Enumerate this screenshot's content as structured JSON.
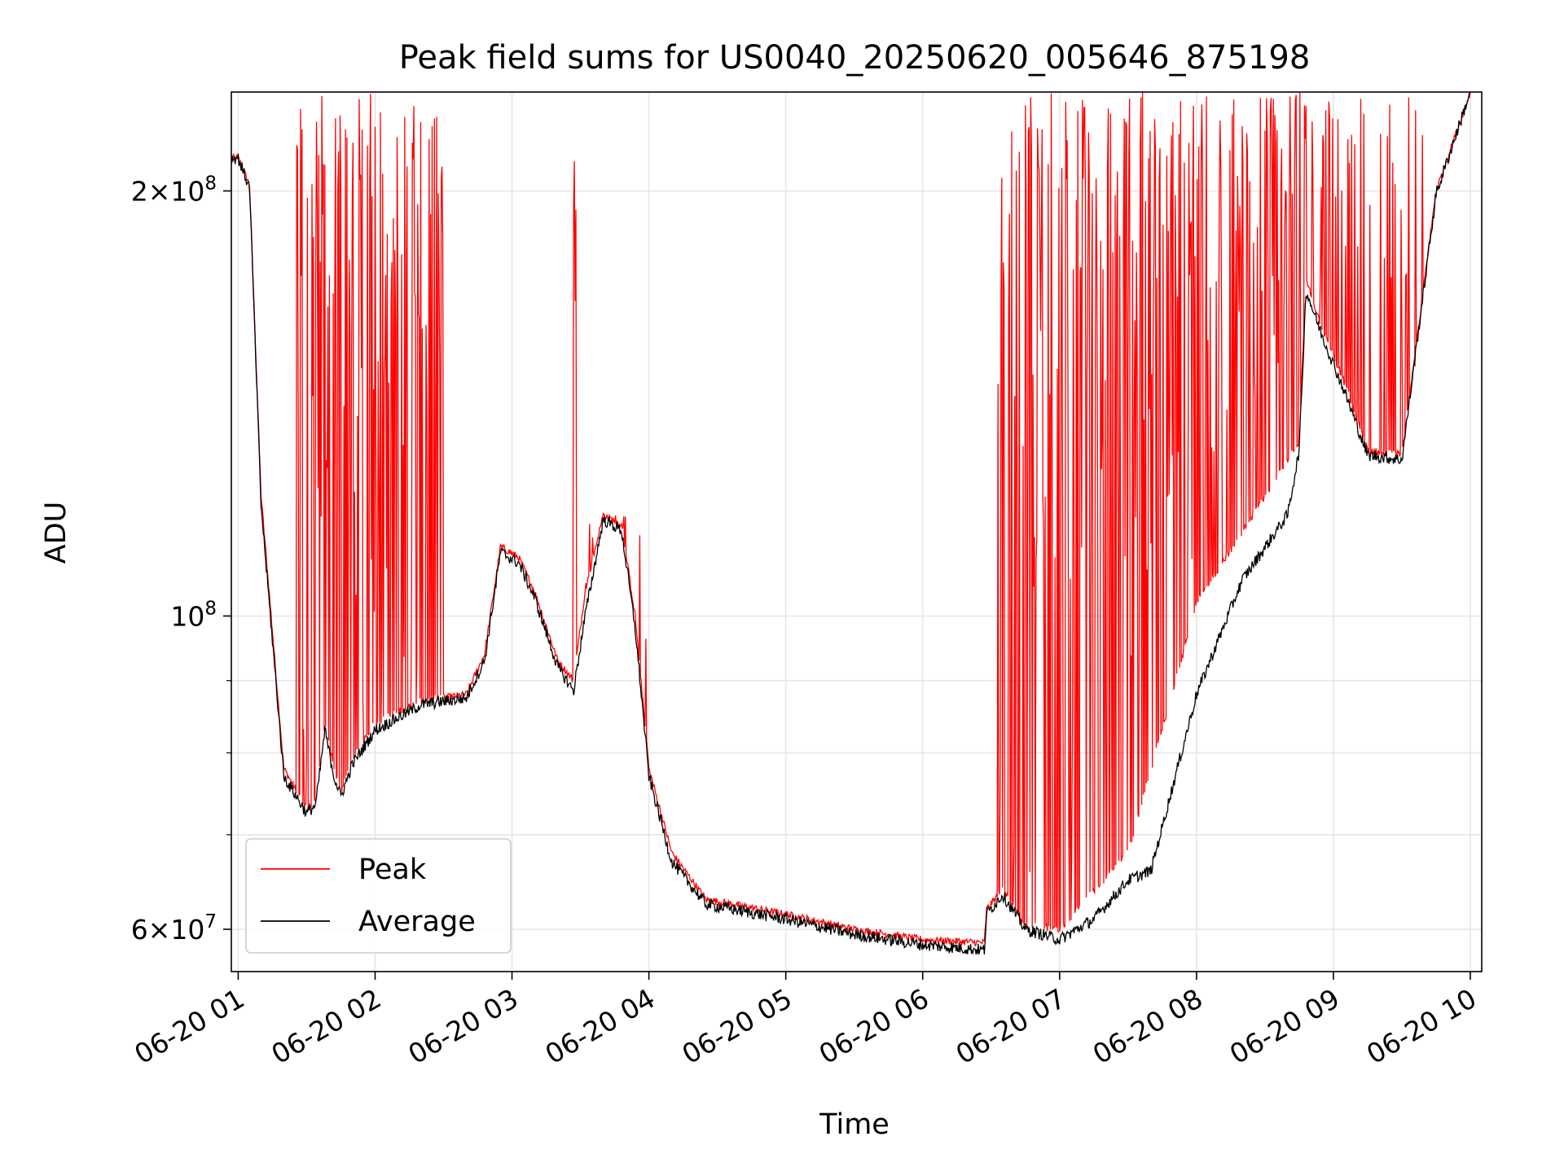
{
  "chart_data": {
    "type": "line",
    "title": "Peak field sums for US0040_20250620_005646_875198",
    "xlabel": "Time",
    "ylabel": "ADU",
    "y_scale": "log",
    "ylim": [
      56000000,
      235000000
    ],
    "xlim": [
      "2025-06-20 00:57",
      "2025-06-20 10:05"
    ],
    "x_ticks": [
      {
        "value": "2025-06-20 01:00",
        "label": "06-20 01"
      },
      {
        "value": "2025-06-20 02:00",
        "label": "06-20 02"
      },
      {
        "value": "2025-06-20 03:00",
        "label": "06-20 03"
      },
      {
        "value": "2025-06-20 04:00",
        "label": "06-20 04"
      },
      {
        "value": "2025-06-20 05:00",
        "label": "06-20 05"
      },
      {
        "value": "2025-06-20 06:00",
        "label": "06-20 06"
      },
      {
        "value": "2025-06-20 07:00",
        "label": "06-20 07"
      },
      {
        "value": "2025-06-20 08:00",
        "label": "06-20 08"
      },
      {
        "value": "2025-06-20 09:00",
        "label": "06-20 09"
      },
      {
        "value": "2025-06-20 10:00",
        "label": "06-20 10"
      }
    ],
    "y_ticks_major": [
      {
        "value": 60000000,
        "mant": "6",
        "exp": "7"
      },
      {
        "value": 100000000,
        "mant": "",
        "exp": "8"
      },
      {
        "value": 200000000,
        "mant": "2",
        "exp": "8"
      }
    ],
    "y_ticks_minor": [
      70000000,
      80000000,
      90000000
    ],
    "grid": true,
    "legend_position": "lower-left",
    "series": [
      {
        "name": "Peak",
        "color": "#ff0000",
        "x": [
          "2025-06-20 00:57",
          "2025-06-20 01:00",
          "2025-06-20 01:05",
          "2025-06-20 01:10",
          "2025-06-20 01:20",
          "2025-06-20 01:30",
          "2025-06-20 01:34",
          "2025-06-20 01:38",
          "2025-06-20 01:42",
          "2025-06-20 01:45",
          "2025-06-20 01:50",
          "2025-06-20 02:00",
          "2025-06-20 02:20",
          "2025-06-20 02:40",
          "2025-06-20 02:48",
          "2025-06-20 02:55",
          "2025-06-20 03:03",
          "2025-06-20 03:10",
          "2025-06-20 03:20",
          "2025-06-20 03:27",
          "2025-06-20 03:32",
          "2025-06-20 03:40",
          "2025-06-20 03:48",
          "2025-06-20 03:54",
          "2025-06-20 04:00",
          "2025-06-20 04:10",
          "2025-06-20 04:25",
          "2025-06-20 05:00",
          "2025-06-20 05:30",
          "2025-06-20 06:00",
          "2025-06-20 06:27",
          "2025-06-20 06:28",
          "2025-06-20 06:35",
          "2025-06-20 06:45",
          "2025-06-20 07:00",
          "2025-06-20 07:30",
          "2025-06-20 08:00",
          "2025-06-20 08:45",
          "2025-06-20 08:48",
          "2025-06-20 08:55",
          "2025-06-20 09:05",
          "2025-06-20 09:15",
          "2025-06-20 09:30",
          "2025-06-20 09:45",
          "2025-06-20 10:00"
        ],
        "y": [
          211000000,
          211000000,
          202000000,
          122000000,
          78000000,
          73000000,
          74000000,
          84000000,
          78000000,
          75000000,
          79000000,
          84000000,
          87000000,
          88000000,
          94000000,
          112000000,
          110000000,
          104000000,
          93000000,
          90000000,
          104000000,
          118000000,
          116000000,
          100000000,
          78000000,
          68000000,
          63000000,
          61500000,
          60000000,
          59000000,
          58700000,
          62000000,
          64000000,
          60500000,
          60000000,
          68000000,
          102000000,
          133000000,
          173000000,
          160000000,
          146000000,
          131000000,
          130000000,
          200000000,
          235000000
        ],
        "spikes": [
          {
            "from": "2025-06-20 01:25",
            "to": "2025-06-20 02:30",
            "max": 235000000,
            "density": "dense"
          },
          {
            "from": "2025-06-20 03:27",
            "to": "2025-06-20 03:28",
            "max": 235000000,
            "density": "single"
          },
          {
            "from": "2025-06-20 03:32",
            "to": "2025-06-20 04:00",
            "max": 118000000,
            "density": "sparse"
          },
          {
            "from": "2025-06-20 06:33",
            "to": "2025-06-20 08:48",
            "max": 235000000,
            "density": "dense"
          },
          {
            "from": "2025-06-20 08:50",
            "to": "2025-06-20 09:40",
            "max": 235000000,
            "density": "medium"
          }
        ]
      },
      {
        "name": "Average",
        "color": "#000000",
        "x": [
          "2025-06-20 00:57",
          "2025-06-20 01:00",
          "2025-06-20 01:05",
          "2025-06-20 01:10",
          "2025-06-20 01:20",
          "2025-06-20 01:30",
          "2025-06-20 01:34",
          "2025-06-20 01:38",
          "2025-06-20 01:42",
          "2025-06-20 01:45",
          "2025-06-20 01:50",
          "2025-06-20 02:00",
          "2025-06-20 02:20",
          "2025-06-20 02:40",
          "2025-06-20 02:48",
          "2025-06-20 02:55",
          "2025-06-20 03:03",
          "2025-06-20 03:10",
          "2025-06-20 03:20",
          "2025-06-20 03:27",
          "2025-06-20 03:32",
          "2025-06-20 03:40",
          "2025-06-20 03:48",
          "2025-06-20 03:54",
          "2025-06-20 04:00",
          "2025-06-20 04:10",
          "2025-06-20 04:25",
          "2025-06-20 05:00",
          "2025-06-20 05:30",
          "2025-06-20 06:00",
          "2025-06-20 06:27",
          "2025-06-20 06:28",
          "2025-06-20 06:35",
          "2025-06-20 06:45",
          "2025-06-20 07:00",
          "2025-06-20 07:15",
          "2025-06-20 07:30",
          "2025-06-20 07:40",
          "2025-06-20 08:00",
          "2025-06-20 08:20",
          "2025-06-20 08:40",
          "2025-06-20 08:45",
          "2025-06-20 08:48",
          "2025-06-20 08:55",
          "2025-06-20 09:05",
          "2025-06-20 09:15",
          "2025-06-20 09:30",
          "2025-06-20 09:45",
          "2025-06-20 10:00"
        ],
        "y": [
          211000000,
          211000000,
          201000000,
          120000000,
          77000000,
          72500000,
          73500000,
          83000000,
          77000000,
          74500000,
          78500000,
          83000000,
          86500000,
          87500000,
          93000000,
          111000000,
          109000000,
          103000000,
          92000000,
          88500000,
          100000000,
          117000000,
          115000000,
          98000000,
          77000000,
          67000000,
          62500000,
          61000000,
          59500000,
          58500000,
          58000000,
          61500000,
          63500000,
          60000000,
          59000000,
          61000000,
          65000000,
          66000000,
          88000000,
          106000000,
          118000000,
          131000000,
          170000000,
          158000000,
          144000000,
          130000000,
          129000000,
          199000000,
          235000000
        ]
      }
    ]
  }
}
